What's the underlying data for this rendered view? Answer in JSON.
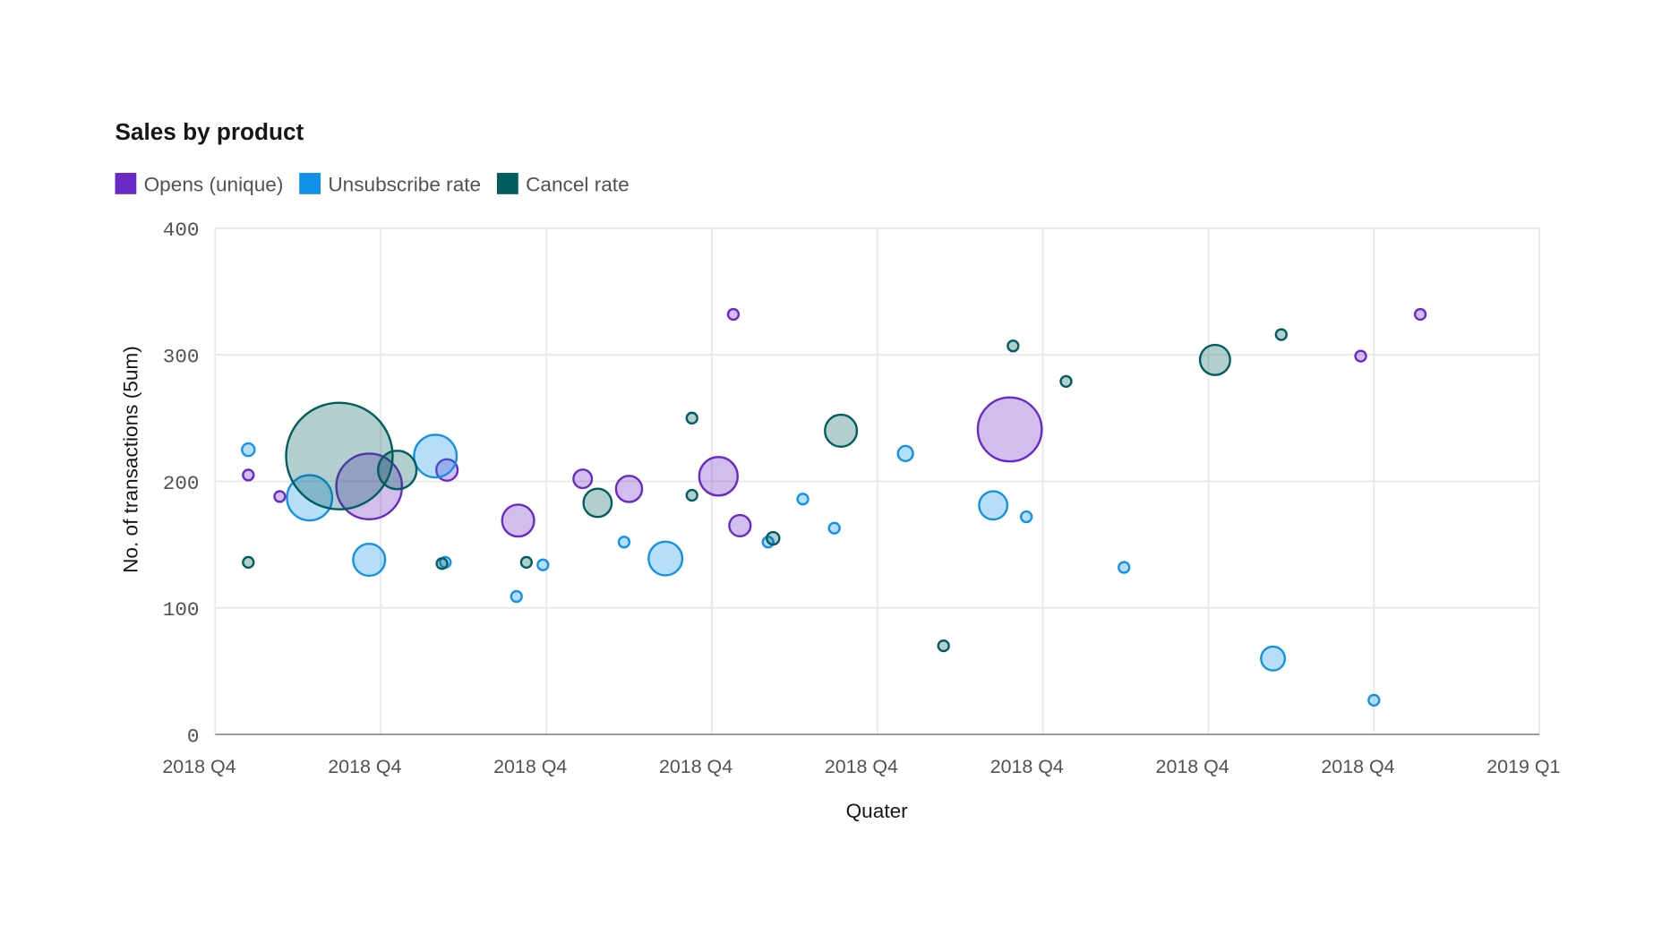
{
  "chart_data": {
    "type": "bubble",
    "title": "Sales by product",
    "xlabel": "Quater",
    "ylabel": "No. of transactions (5um)",
    "ylim": [
      0,
      400
    ],
    "yticks": [
      "0",
      "100",
      "200",
      "300",
      "400"
    ],
    "xticks": [
      "2018 Q4",
      "2018 Q4",
      "2018 Q4",
      "2018 Q4",
      "2018 Q4",
      "2018 Q4",
      "2018 Q4",
      "2018 Q4",
      "2019 Q1"
    ],
    "x_unit_note_visible": false,
    "grid": true,
    "legend_position": "top-left",
    "series": [
      {
        "name": "Opens (unique)",
        "color": "#6929c4",
        "points": [
          {
            "x": 0.2,
            "y": 205,
            "z": 1
          },
          {
            "x": 0.39,
            "y": 188,
            "z": 1
          },
          {
            "x": 0.93,
            "y": 196,
            "z": 38
          },
          {
            "x": 1.4,
            "y": 209,
            "z": 4
          },
          {
            "x": 1.83,
            "y": 169,
            "z": 9
          },
          {
            "x": 2.22,
            "y": 202,
            "z": 3
          },
          {
            "x": 2.5,
            "y": 194,
            "z": 6
          },
          {
            "x": 3.04,
            "y": 204,
            "z": 13
          },
          {
            "x": 3.13,
            "y": 332,
            "z": 1
          },
          {
            "x": 3.17,
            "y": 165,
            "z": 4
          },
          {
            "x": 4.8,
            "y": 241,
            "z": 36
          },
          {
            "x": 6.92,
            "y": 299,
            "z": 1
          },
          {
            "x": 7.28,
            "y": 332,
            "z": 1
          }
        ]
      },
      {
        "name": "Unsubscribe rate",
        "color": "#1192e8",
        "points": [
          {
            "x": 0.2,
            "y": 225,
            "z": 1.4
          },
          {
            "x": 0.57,
            "y": 187,
            "z": 18
          },
          {
            "x": 0.93,
            "y": 138,
            "z": 9
          },
          {
            "x": 1.33,
            "y": 220,
            "z": 16
          },
          {
            "x": 1.39,
            "y": 136,
            "z": 1
          },
          {
            "x": 1.82,
            "y": 109,
            "z": 1
          },
          {
            "x": 1.98,
            "y": 134,
            "z": 1
          },
          {
            "x": 2.47,
            "y": 152,
            "z": 1
          },
          {
            "x": 2.72,
            "y": 139,
            "z": 10
          },
          {
            "x": 3.34,
            "y": 152,
            "z": 1
          },
          {
            "x": 3.55,
            "y": 186,
            "z": 1
          },
          {
            "x": 3.74,
            "y": 163,
            "z": 1
          },
          {
            "x": 4.17,
            "y": 222,
            "z": 2
          },
          {
            "x": 4.7,
            "y": 181,
            "z": 7
          },
          {
            "x": 4.9,
            "y": 172,
            "z": 1
          },
          {
            "x": 5.49,
            "y": 132,
            "z": 1
          },
          {
            "x": 6.39,
            "y": 60,
            "z": 5
          },
          {
            "x": 7.0,
            "y": 27,
            "z": 1
          }
        ]
      },
      {
        "name": "Cancel rate",
        "color": "#005d5d",
        "points": [
          {
            "x": 0.2,
            "y": 136,
            "z": 1
          },
          {
            "x": 0.75,
            "y": 220,
            "z": 100
          },
          {
            "x": 1.1,
            "y": 209,
            "z": 13
          },
          {
            "x": 1.37,
            "y": 135,
            "z": 1
          },
          {
            "x": 1.88,
            "y": 136,
            "z": 1
          },
          {
            "x": 2.31,
            "y": 183,
            "z": 7
          },
          {
            "x": 2.88,
            "y": 250,
            "z": 1
          },
          {
            "x": 2.88,
            "y": 189,
            "z": 1
          },
          {
            "x": 3.37,
            "y": 155,
            "z": 1.4
          },
          {
            "x": 3.78,
            "y": 240,
            "z": 9
          },
          {
            "x": 4.4,
            "y": 70,
            "z": 1
          },
          {
            "x": 4.82,
            "y": 307,
            "z": 1
          },
          {
            "x": 5.14,
            "y": 279,
            "z": 1
          },
          {
            "x": 6.04,
            "y": 296,
            "z": 8
          },
          {
            "x": 6.44,
            "y": 316,
            "z": 1
          }
        ]
      }
    ]
  }
}
